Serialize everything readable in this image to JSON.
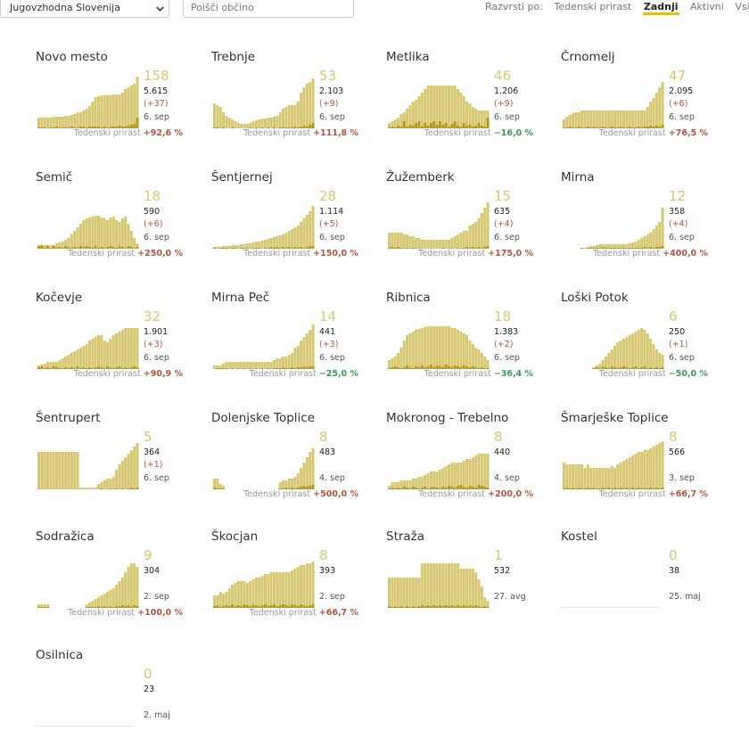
{
  "region_select": {
    "value": "Jugovzhodna Slovenija"
  },
  "search": {
    "placeholder": "Poišči občino"
  },
  "sort": {
    "label": "Razvrsti po:",
    "options": [
      "Tedenski prirast",
      "Zadnji",
      "Aktivni",
      "Vsi"
    ],
    "active": 1
  },
  "trend_label": "Tedenski prirast",
  "colors": {
    "bar_light": "#d6c872",
    "bar_dark": "#b59a18",
    "up": "#b5553d",
    "down": "#3a9a5b"
  },
  "cards": [
    {
      "name": "Novo mesto",
      "active": "158",
      "total": "5.615",
      "delta": "(+37)",
      "date": "6. sep",
      "trend": "+92,6 %",
      "dir": "up",
      "bars": [
        12,
        12,
        12,
        12,
        12,
        13,
        13,
        13,
        13,
        14,
        14,
        15,
        16,
        18,
        18,
        20,
        22,
        25,
        30,
        35,
        36,
        37,
        37,
        37,
        37,
        38,
        38,
        38,
        40,
        44,
        46,
        48,
        50,
        58
      ],
      "dark": [
        1,
        1,
        1,
        0,
        1,
        1,
        2,
        1,
        1,
        1,
        1,
        2,
        1,
        1,
        2,
        2,
        1,
        2,
        2,
        2,
        2,
        1,
        2,
        1,
        2,
        2,
        2,
        3,
        2,
        2,
        3,
        4,
        5,
        12
      ]
    },
    {
      "name": "Trebnje",
      "active": "53",
      "total": "2.103",
      "delta": "(+9)",
      "date": "6. sep",
      "trend": "+111,8 %",
      "dir": "up",
      "bars": [
        28,
        26,
        24,
        18,
        14,
        12,
        10,
        8,
        6,
        5,
        5,
        5,
        6,
        8,
        9,
        10,
        11,
        11,
        12,
        12,
        13,
        14,
        18,
        22,
        24,
        26,
        26,
        26,
        30,
        40,
        46,
        50,
        52,
        56
      ],
      "dark": [
        1,
        1,
        0,
        1,
        0,
        0,
        1,
        0,
        0,
        0,
        0,
        0,
        1,
        0,
        1,
        0,
        1,
        0,
        1,
        0,
        1,
        0,
        1,
        1,
        1,
        1,
        1,
        2,
        1,
        2,
        3,
        2,
        4,
        6
      ]
    },
    {
      "name": "Metlika",
      "active": "46",
      "total": "1.206",
      "delta": "(+9)",
      "date": "6. sep",
      "trend": "−16,0 %",
      "dir": "down",
      "bars": [
        6,
        8,
        10,
        12,
        16,
        18,
        22,
        26,
        30,
        32,
        36,
        40,
        44,
        48,
        48,
        48,
        48,
        48,
        48,
        48,
        48,
        48,
        48,
        44,
        40,
        36,
        30,
        28,
        24,
        22,
        20,
        20,
        20,
        20
      ],
      "dark": [
        1,
        2,
        1,
        3,
        2,
        8,
        2,
        4,
        3,
        6,
        8,
        2,
        6,
        3,
        6,
        8,
        4,
        8,
        4,
        6,
        2,
        5,
        8,
        3,
        2,
        6,
        3,
        4,
        2,
        3,
        6,
        3,
        2,
        12
      ]
    },
    {
      "name": "Črnomelj",
      "active": "47",
      "total": "2.095",
      "delta": "(+6)",
      "date": "6. sep",
      "trend": "+76,5 %",
      "dir": "up",
      "bars": [
        10,
        13,
        15,
        17,
        18,
        18,
        20,
        20,
        20,
        20,
        20,
        20,
        20,
        20,
        20,
        20,
        20,
        20,
        20,
        20,
        20,
        20,
        20,
        20,
        20,
        20,
        20,
        20,
        24,
        30,
        34,
        40,
        46,
        52
      ],
      "dark": [
        1,
        1,
        2,
        1,
        1,
        2,
        1,
        1,
        2,
        1,
        2,
        1,
        1,
        2,
        1,
        1,
        2,
        1,
        1,
        2,
        1,
        1,
        2,
        1,
        1,
        2,
        1,
        2,
        2,
        3,
        2,
        3,
        2,
        4
      ]
    },
    {
      "name": "Semič",
      "active": "18",
      "total": "590",
      "delta": "(+6)",
      "date": "6. sep",
      "trend": "+250,0 %",
      "dir": "up",
      "bars": [
        4,
        4,
        4,
        4,
        4,
        4,
        6,
        7,
        8,
        10,
        12,
        16,
        20,
        24,
        28,
        32,
        34,
        35,
        36,
        37,
        37,
        35,
        34,
        32,
        35,
        36,
        32,
        30,
        34,
        36,
        28,
        20,
        12,
        6
      ],
      "dark": [
        3,
        4,
        1,
        3,
        1,
        3,
        1,
        2,
        1,
        3,
        2,
        1,
        2,
        1,
        3,
        2,
        3,
        2,
        1,
        3,
        1,
        2,
        1,
        2,
        3,
        2,
        1,
        3,
        2,
        1,
        3,
        2,
        1,
        2
      ]
    },
    {
      "name": "Šentjernej",
      "active": "28",
      "total": "1.114",
      "delta": "(+5)",
      "date": "6. sep",
      "trend": "+150,0 %",
      "dir": "up",
      "bars": [
        2,
        2,
        2,
        3,
        3,
        3,
        4,
        4,
        4,
        5,
        5,
        6,
        6,
        7,
        8,
        8,
        9,
        10,
        11,
        12,
        13,
        14,
        15,
        16,
        18,
        20,
        22,
        24,
        26,
        30,
        34,
        38,
        42,
        48
      ],
      "dark": [
        1,
        0,
        1,
        1,
        1,
        0,
        1,
        1,
        0,
        1,
        1,
        1,
        0,
        1,
        1,
        1,
        0,
        1,
        1,
        2,
        1,
        2,
        1,
        2,
        1,
        2,
        1,
        2,
        1,
        2,
        1,
        2,
        3,
        3
      ]
    },
    {
      "name": "Žužemberk",
      "active": "15",
      "total": "635",
      "delta": "(+4)",
      "date": "6. sep",
      "trend": "+175,0 %",
      "dir": "up",
      "bars": [
        18,
        18,
        18,
        18,
        18,
        16,
        16,
        14,
        14,
        12,
        12,
        10,
        10,
        10,
        10,
        10,
        10,
        10,
        10,
        10,
        10,
        12,
        14,
        16,
        18,
        20,
        20,
        26,
        28,
        30,
        34,
        40,
        46,
        52
      ],
      "dark": [
        1,
        2,
        1,
        2,
        1,
        0,
        1,
        0,
        1,
        0,
        1,
        0,
        0,
        0,
        0,
        0,
        0,
        0,
        1,
        0,
        0,
        1,
        0,
        1,
        0,
        1,
        2,
        1,
        2,
        1,
        2,
        1,
        2,
        3
      ]
    },
    {
      "name": "Mirna",
      "active": "12",
      "total": "358",
      "delta": "(+4)",
      "date": "6. sep",
      "trend": "+400,0 %",
      "dir": "up",
      "bars": [
        0,
        0,
        0,
        0,
        0,
        0,
        1,
        1,
        2,
        3,
        3,
        4,
        5,
        5,
        5,
        5,
        5,
        5,
        5,
        5,
        5,
        5,
        6,
        7,
        8,
        10,
        12,
        14,
        16,
        18,
        22,
        26,
        30,
        46
      ],
      "dark": [
        0,
        0,
        0,
        0,
        0,
        0,
        1,
        0,
        1,
        1,
        1,
        1,
        1,
        2,
        1,
        1,
        1,
        1,
        1,
        1,
        1,
        1,
        1,
        1,
        1,
        1,
        1,
        2,
        1,
        2,
        1,
        2,
        2,
        3
      ]
    },
    {
      "name": "Kočevje",
      "active": "32",
      "total": "1.901",
      "delta": "(+3)",
      "date": "6. sep",
      "trend": "+90,9 %",
      "dir": "up",
      "bars": [
        4,
        5,
        6,
        8,
        8,
        8,
        8,
        10,
        12,
        14,
        16,
        18,
        20,
        22,
        24,
        26,
        28,
        32,
        34,
        36,
        38,
        38,
        32,
        30,
        34,
        38,
        40,
        42,
        44,
        46,
        46,
        46,
        46,
        46
      ],
      "dark": [
        2,
        3,
        1,
        2,
        1,
        3,
        2,
        1,
        1,
        2,
        1,
        2,
        1,
        3,
        1,
        2,
        1,
        2,
        1,
        2,
        3,
        2,
        1,
        3,
        2,
        1,
        2,
        3,
        1,
        2,
        1,
        2,
        3,
        2
      ]
    },
    {
      "name": "Mirna Peč",
      "active": "14",
      "total": "441",
      "delta": "(+3)",
      "date": "6. sep",
      "trend": "−25,0 %",
      "dir": "down",
      "bars": [
        4,
        4,
        4,
        6,
        8,
        8,
        8,
        8,
        8,
        8,
        8,
        8,
        8,
        8,
        8,
        8,
        8,
        8,
        8,
        8,
        10,
        12,
        12,
        14,
        14,
        16,
        18,
        24,
        26,
        32,
        36,
        40,
        44,
        50
      ],
      "dark": [
        0,
        1,
        1,
        1,
        1,
        0,
        1,
        0,
        1,
        0,
        1,
        0,
        1,
        0,
        1,
        0,
        1,
        0,
        1,
        0,
        1,
        1,
        1,
        2,
        1,
        1,
        2,
        1,
        2,
        2,
        3,
        2,
        3,
        3
      ]
    },
    {
      "name": "Ribnica",
      "active": "18",
      "total": "1.383",
      "delta": "(+2)",
      "date": "6. sep",
      "trend": "−36,4 %",
      "dir": "down",
      "bars": [
        10,
        12,
        14,
        18,
        24,
        32,
        38,
        40,
        42,
        44,
        45,
        46,
        47,
        48,
        48,
        48,
        48,
        48,
        48,
        48,
        48,
        46,
        46,
        44,
        42,
        40,
        38,
        32,
        28,
        24,
        22,
        18,
        14,
        10
      ],
      "dark": [
        1,
        2,
        3,
        2,
        1,
        2,
        4,
        2,
        1,
        3,
        2,
        4,
        2,
        3,
        5,
        2,
        4,
        3,
        2,
        5,
        3,
        2,
        4,
        3,
        2,
        4,
        3,
        2,
        3,
        2,
        1,
        2,
        1,
        1
      ]
    },
    {
      "name": "Loški Potok",
      "active": "6",
      "total": "250",
      "delta": "(+1)",
      "date": "6. sep",
      "trend": "−50,0 %",
      "dir": "down",
      "bars": [
        0,
        0,
        0,
        0,
        0,
        0,
        0,
        0,
        0,
        0,
        2,
        4,
        6,
        10,
        14,
        18,
        22,
        26,
        30,
        32,
        34,
        36,
        38,
        40,
        42,
        44,
        46,
        44,
        40,
        34,
        28,
        22,
        18,
        16
      ],
      "dark": [
        0,
        0,
        0,
        0,
        0,
        0,
        0,
        0,
        0,
        0,
        1,
        2,
        1,
        3,
        2,
        1,
        3,
        2,
        1,
        2,
        3,
        2,
        1,
        2,
        3,
        1,
        2,
        3,
        1,
        2,
        1,
        2,
        1,
        2
      ]
    },
    {
      "name": "Šentrupert",
      "active": "5",
      "total": "364",
      "delta": "(+1)",
      "date": "6. sep",
      "trend": "",
      "dir": "up",
      "bars": [
        42,
        42,
        42,
        42,
        42,
        42,
        42,
        42,
        42,
        42,
        42,
        42,
        42,
        42,
        2,
        2,
        2,
        2,
        2,
        2,
        6,
        8,
        10,
        12,
        12,
        14,
        22,
        28,
        32,
        36,
        40,
        44,
        48,
        52
      ],
      "dark": [
        0,
        0,
        0,
        0,
        0,
        0,
        0,
        0,
        0,
        0,
        0,
        0,
        0,
        0,
        0,
        0,
        0,
        0,
        0,
        0,
        0,
        1,
        0,
        0,
        1,
        0,
        1,
        0,
        1,
        0,
        1,
        2,
        1,
        2
      ]
    },
    {
      "name": "Dolenjske Toplice",
      "active": "8",
      "total": "483",
      "delta": "",
      "date": "4. sep",
      "trend": "+500,0 %",
      "dir": "up",
      "bars": [
        12,
        12,
        6,
        4,
        0,
        0,
        0,
        0,
        0,
        0,
        0,
        0,
        0,
        0,
        0,
        0,
        0,
        0,
        0,
        0,
        0,
        0,
        8,
        10,
        10,
        12,
        12,
        14,
        18,
        24,
        30,
        36,
        42,
        46
      ],
      "dark": [
        2,
        1,
        1,
        1,
        0,
        0,
        0,
        0,
        0,
        0,
        0,
        0,
        0,
        0,
        0,
        0,
        0,
        0,
        0,
        0,
        0,
        0,
        1,
        1,
        2,
        1,
        2,
        1,
        2,
        3,
        4,
        3,
        4,
        5
      ]
    },
    {
      "name": "Mokronog - Trebelno",
      "active": "8",
      "total": "440",
      "delta": "",
      "date": "4. sep",
      "trend": "+200,0 %",
      "dir": "up",
      "bars": [
        4,
        8,
        8,
        8,
        10,
        10,
        10,
        10,
        12,
        12,
        14,
        14,
        16,
        18,
        20,
        20,
        20,
        22,
        24,
        26,
        28,
        30,
        30,
        30,
        30,
        32,
        34,
        34,
        36,
        38,
        40,
        40,
        40,
        40
      ],
      "dark": [
        1,
        2,
        1,
        2,
        1,
        3,
        2,
        1,
        3,
        2,
        1,
        2,
        3,
        1,
        2,
        3,
        2,
        1,
        3,
        2,
        4,
        3,
        2,
        4,
        5,
        3,
        2,
        4,
        3,
        2,
        5,
        4,
        3,
        2
      ]
    },
    {
      "name": "Šmarješke Toplice",
      "active": "8",
      "total": "566",
      "delta": "",
      "date": "3. sep",
      "trend": "+66,7 %",
      "dir": "up",
      "bars": [
        30,
        28,
        28,
        28,
        28,
        28,
        28,
        24,
        28,
        24,
        24,
        24,
        24,
        24,
        24,
        24,
        26,
        24,
        28,
        30,
        32,
        34,
        36,
        38,
        40,
        42,
        42,
        44,
        44,
        46,
        48,
        50,
        52,
        54
      ],
      "dark": [
        1,
        2,
        1,
        2,
        1,
        2,
        1,
        1,
        2,
        1,
        2,
        1,
        1,
        2,
        1,
        2,
        1,
        2,
        1,
        2,
        1,
        2,
        1,
        2,
        1,
        2,
        1,
        2,
        1,
        2,
        1,
        2,
        1,
        2
      ]
    },
    {
      "name": "Sodražica",
      "active": "9",
      "total": "304",
      "delta": "",
      "date": "2. sep",
      "trend": "+100,0 %",
      "dir": "up",
      "bars": [
        4,
        4,
        4,
        4,
        0,
        0,
        0,
        0,
        0,
        0,
        0,
        0,
        0,
        0,
        0,
        0,
        4,
        6,
        8,
        10,
        12,
        14,
        16,
        18,
        20,
        22,
        26,
        30,
        34,
        40,
        46,
        50,
        50,
        46
      ],
      "dark": [
        1,
        1,
        1,
        1,
        0,
        0,
        0,
        0,
        0,
        0,
        0,
        0,
        0,
        0,
        0,
        0,
        1,
        1,
        1,
        1,
        2,
        1,
        2,
        1,
        2,
        1,
        2,
        2,
        3,
        2,
        3,
        2,
        3,
        2
      ]
    },
    {
      "name": "Škocjan",
      "active": "8",
      "total": "393",
      "delta": "",
      "date": "2. sep",
      "trend": "+66,7 %",
      "dir": "up",
      "bars": [
        14,
        14,
        18,
        16,
        18,
        22,
        26,
        28,
        30,
        30,
        30,
        28,
        30,
        32,
        34,
        34,
        36,
        38,
        38,
        40,
        40,
        40,
        40,
        40,
        40,
        40,
        42,
        44,
        46,
        48,
        48,
        50,
        50,
        52
      ],
      "dark": [
        2,
        3,
        1,
        2,
        3,
        2,
        4,
        2,
        3,
        2,
        4,
        3,
        2,
        4,
        3,
        2,
        3,
        4,
        2,
        3,
        4,
        2,
        3,
        4,
        3,
        2,
        4,
        3,
        2,
        4,
        3,
        2,
        3,
        4
      ]
    },
    {
      "name": "Straža",
      "active": "1",
      "total": "532",
      "delta": "",
      "date": "27. avg",
      "trend": "",
      "dir": "up",
      "bars": [
        34,
        34,
        34,
        34,
        34,
        34,
        34,
        34,
        34,
        34,
        34,
        50,
        50,
        50,
        50,
        50,
        50,
        50,
        50,
        50,
        50,
        50,
        50,
        50,
        44,
        44,
        44,
        44,
        44,
        40,
        32,
        24,
        12,
        8
      ],
      "dark": [
        2,
        1,
        2,
        1,
        2,
        1,
        2,
        1,
        2,
        1,
        2,
        3,
        2,
        3,
        2,
        3,
        2,
        3,
        2,
        3,
        2,
        3,
        2,
        3,
        2,
        3,
        2,
        3,
        2,
        3,
        2,
        1,
        2,
        1
      ]
    },
    {
      "name": "Kostel",
      "active": "0",
      "total": "38",
      "delta": "",
      "date": "25. maj",
      "trend": "",
      "dir": "up",
      "bars": [],
      "dark": []
    },
    {
      "name": "Osilnica",
      "active": "0",
      "total": "23",
      "delta": "",
      "date": "2. maj",
      "trend": "",
      "dir": "up",
      "bars": [],
      "dark": []
    }
  ]
}
